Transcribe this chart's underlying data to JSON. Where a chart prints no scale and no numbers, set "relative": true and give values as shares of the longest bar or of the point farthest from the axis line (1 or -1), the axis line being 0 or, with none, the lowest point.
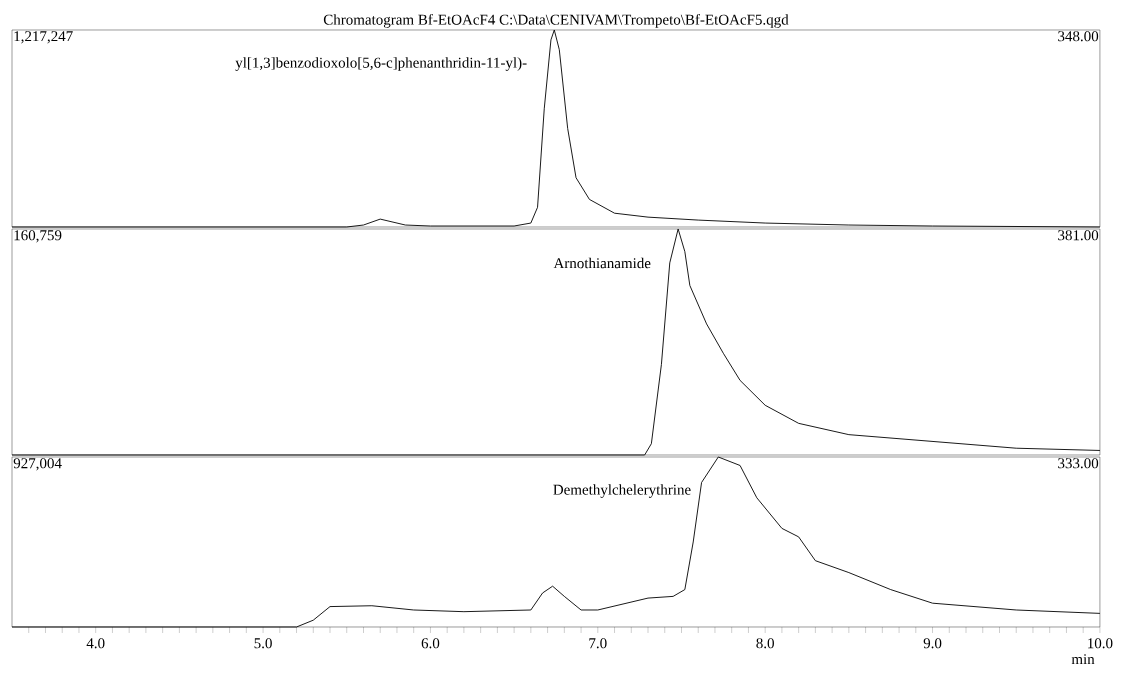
{
  "chart_data": [
    {
      "type": "line",
      "title": "Chromatogram Bf-EtOAcF4 C:\\Data\\CENIVAM\\Trompeto\\Bf-EtOAcF5.qgd",
      "relative": true,
      "xlim": [
        3.5,
        10.0
      ],
      "tick_labels": false,
      "x": [
        3.5,
        5.5,
        5.6,
        5.7,
        5.85,
        6.0,
        6.5,
        6.6,
        6.64,
        6.68,
        6.72,
        6.74,
        6.77,
        6.82,
        6.87,
        6.95,
        7.1,
        7.3,
        7.6,
        8.0,
        8.5,
        9.0,
        10.0
      ],
      "series": [
        {
          "color": "#000000",
          "values": [
            0,
            0,
            0.01,
            0.04,
            0.01,
            0.005,
            0.005,
            0.02,
            0.1,
            0.6,
            0.95,
            1,
            0.9,
            0.5,
            0.25,
            0.14,
            0.07,
            0.05,
            0.035,
            0.02,
            0.01,
            0.005,
            0
          ]
        }
      ],
      "annotations": [
        "1,217,247",
        "348.00",
        {
          "text": "yl[1,3]benzodioxolo[5,6-c]phenanthridin-11-yl)-",
          "x": 6.74,
          "y": 1
        }
      ]
    },
    {
      "type": "line",
      "relative": true,
      "xlim": [
        3.5,
        10.0
      ],
      "tick_labels": false,
      "x": [
        3.5,
        7.28,
        7.32,
        7.38,
        7.43,
        7.48,
        7.52,
        7.55,
        7.65,
        7.75,
        7.85,
        8.0,
        8.2,
        8.5,
        9.0,
        9.5,
        10.0
      ],
      "series": [
        {
          "color": "#000000",
          "values": [
            0,
            0,
            0.05,
            0.4,
            0.85,
            1,
            0.9,
            0.75,
            0.58,
            0.45,
            0.33,
            0.22,
            0.14,
            0.09,
            0.06,
            0.03,
            0.02
          ]
        }
      ],
      "annotations": [
        "160,759",
        "381.00",
        {
          "text": "Arnothianamide",
          "x": 7.48,
          "y": 1
        }
      ]
    },
    {
      "type": "line",
      "relative": true,
      "xlim": [
        3.5,
        10.0
      ],
      "tick_labels": "x",
      "xlabel": "min",
      "xticks": [
        {
          "value": 3.6,
          "label": null
        },
        {
          "value": 3.7,
          "label": null
        },
        {
          "value": 3.8,
          "label": null
        },
        {
          "value": 3.9,
          "label": null
        },
        {
          "value": 4.0,
          "label": "4.0"
        },
        {
          "value": 4.1,
          "label": null
        },
        {
          "value": 4.2,
          "label": null
        },
        {
          "value": 4.3,
          "label": null
        },
        {
          "value": 4.4,
          "label": null
        },
        {
          "value": 4.5,
          "label": null
        },
        {
          "value": 4.6,
          "label": null
        },
        {
          "value": 4.7,
          "label": null
        },
        {
          "value": 4.8,
          "label": null
        },
        {
          "value": 4.9,
          "label": null
        },
        {
          "value": 5.0,
          "label": "5.0"
        },
        {
          "value": 5.1,
          "label": null
        },
        {
          "value": 5.2,
          "label": null
        },
        {
          "value": 5.3,
          "label": null
        },
        {
          "value": 5.4,
          "label": null
        },
        {
          "value": 5.5,
          "label": null
        },
        {
          "value": 5.6,
          "label": null
        },
        {
          "value": 5.7,
          "label": null
        },
        {
          "value": 5.8,
          "label": null
        },
        {
          "value": 5.9,
          "label": null
        },
        {
          "value": 6.0,
          "label": "6.0"
        },
        {
          "value": 6.1,
          "label": null
        },
        {
          "value": 6.2,
          "label": null
        },
        {
          "value": 6.3,
          "label": null
        },
        {
          "value": 6.4,
          "label": null
        },
        {
          "value": 6.5,
          "label": null
        },
        {
          "value": 6.6,
          "label": null
        },
        {
          "value": 6.7,
          "label": null
        },
        {
          "value": 6.8,
          "label": null
        },
        {
          "value": 6.9,
          "label": null
        },
        {
          "value": 7.0,
          "label": "7.0"
        },
        {
          "value": 7.1,
          "label": null
        },
        {
          "value": 7.2,
          "label": null
        },
        {
          "value": 7.3,
          "label": null
        },
        {
          "value": 7.4,
          "label": null
        },
        {
          "value": 7.5,
          "label": null
        },
        {
          "value": 7.6,
          "label": null
        },
        {
          "value": 7.7,
          "label": null
        },
        {
          "value": 7.8,
          "label": null
        },
        {
          "value": 7.9,
          "label": null
        },
        {
          "value": 8.0,
          "label": "8.0"
        },
        {
          "value": 8.1,
          "label": null
        },
        {
          "value": 8.2,
          "label": null
        },
        {
          "value": 8.3,
          "label": null
        },
        {
          "value": 8.4,
          "label": null
        },
        {
          "value": 8.5,
          "label": null
        },
        {
          "value": 8.6,
          "label": null
        },
        {
          "value": 8.7,
          "label": null
        },
        {
          "value": 8.8,
          "label": null
        },
        {
          "value": 8.9,
          "label": null
        },
        {
          "value": 9.0,
          "label": "9.0"
        },
        {
          "value": 9.1,
          "label": null
        },
        {
          "value": 9.2,
          "label": null
        },
        {
          "value": 9.3,
          "label": null
        },
        {
          "value": 9.4,
          "label": null
        },
        {
          "value": 9.5,
          "label": null
        },
        {
          "value": 9.6,
          "label": null
        },
        {
          "value": 9.7,
          "label": null
        },
        {
          "value": 9.8,
          "label": null
        },
        {
          "value": 9.9,
          "label": null
        },
        {
          "value": 10.0,
          "label": "10.0"
        }
      ],
      "x": [
        3.5,
        5.2,
        5.3,
        5.4,
        5.65,
        5.9,
        6.2,
        6.6,
        6.67,
        6.73,
        6.8,
        6.9,
        7.0,
        7.3,
        7.45,
        7.52,
        7.57,
        7.62,
        7.72,
        7.85,
        7.95,
        8.1,
        8.2,
        8.3,
        8.5,
        8.75,
        9.0,
        9.5,
        10.0
      ],
      "series": [
        {
          "color": "#000000",
          "values": [
            0,
            0,
            0.04,
            0.12,
            0.125,
            0.1,
            0.09,
            0.1,
            0.2,
            0.24,
            0.18,
            0.1,
            0.1,
            0.17,
            0.18,
            0.22,
            0.5,
            0.85,
            1,
            0.95,
            0.76,
            0.58,
            0.53,
            0.39,
            0.32,
            0.22,
            0.14,
            0.1,
            0.08
          ]
        }
      ],
      "annotations": [
        "927,004",
        "333.00",
        {
          "text": "Demethylchelerythrine",
          "x": 7.72,
          "y": 1
        }
      ]
    }
  ]
}
